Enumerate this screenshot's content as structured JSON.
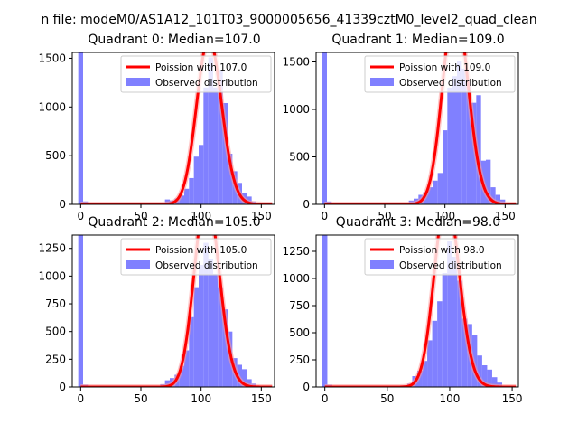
{
  "suptitle": "n file: modeM0/AS1A12_101T03_9000005656_41339cztM0_level2_quad_clean",
  "colors": {
    "observed_bar": "#8080ff",
    "poisson_line": "#ff0000",
    "glow": "#ff9999",
    "axes": "#000000",
    "legend_border": "#cccccc"
  },
  "chart_data": [
    {
      "type": "bar",
      "title": "Quadrant 0: Median=107.0",
      "median": 107.0,
      "xlim": [
        -7,
        161
      ],
      "ylim": [
        0,
        1560
      ],
      "xticks": [
        0,
        50,
        100,
        150
      ],
      "yticks": [
        0,
        500,
        1000,
        1500
      ],
      "bin_width": 4,
      "legend_position": "top-right",
      "series": [
        {
          "name": "Poission with 107.0",
          "kind": "line"
        },
        {
          "name": "Observed distribution",
          "kind": "hist",
          "bins": [
            -2,
            2,
            62,
            66,
            70,
            74,
            78,
            82,
            86,
            90,
            94,
            98,
            102,
            106,
            110,
            114,
            118,
            122,
            126,
            130,
            134,
            138,
            142,
            146,
            150,
            154
          ],
          "values": [
            1560,
            30,
            5,
            8,
            50,
            40,
            60,
            90,
            160,
            270,
            490,
            610,
            1200,
            1510,
            1200,
            1380,
            1040,
            520,
            340,
            220,
            120,
            80,
            30,
            12,
            6,
            3
          ]
        }
      ]
    },
    {
      "type": "bar",
      "title": "Quadrant 1: Median=109.0",
      "median": 109.0,
      "xlim": [
        -7,
        161
      ],
      "ylim": [
        0,
        1600
      ],
      "xticks": [
        0,
        50,
        100,
        150
      ],
      "yticks": [
        0,
        500,
        1000,
        1500
      ],
      "bin_width": 4,
      "legend_position": "top-right",
      "series": [
        {
          "name": "Poission with 109.0",
          "kind": "line"
        },
        {
          "name": "Observed distribution",
          "kind": "hist",
          "bins": [
            -2,
            2,
            62,
            66,
            70,
            74,
            78,
            82,
            86,
            90,
            94,
            98,
            102,
            106,
            110,
            114,
            118,
            122,
            126,
            130,
            134,
            138,
            142,
            146,
            150,
            154
          ],
          "values": [
            1600,
            30,
            8,
            5,
            40,
            60,
            100,
            130,
            180,
            250,
            330,
            780,
            1230,
            1350,
            1510,
            1430,
            1300,
            1070,
            1150,
            460,
            470,
            180,
            100,
            50,
            15,
            4
          ]
        }
      ]
    },
    {
      "type": "bar",
      "title": "Quadrant 2: Median=105.0",
      "median": 105.0,
      "xlim": [
        -7,
        161
      ],
      "ylim": [
        0,
        1370
      ],
      "xticks": [
        0,
        50,
        100,
        150
      ],
      "yticks": [
        0,
        250,
        500,
        750,
        1000,
        1250
      ],
      "bin_width": 4,
      "legend_position": "top-right",
      "series": [
        {
          "name": "Poission with 105.0",
          "kind": "line"
        },
        {
          "name": "Observed distribution",
          "kind": "hist",
          "bins": [
            -2,
            2,
            58,
            62,
            66,
            70,
            74,
            78,
            82,
            86,
            90,
            94,
            98,
            102,
            106,
            110,
            114,
            118,
            122,
            126,
            130,
            134,
            138,
            142,
            146,
            150
          ],
          "values": [
            1370,
            20,
            5,
            10,
            25,
            60,
            80,
            110,
            190,
            330,
            630,
            900,
            1100,
            1300,
            1150,
            1020,
            900,
            700,
            500,
            260,
            200,
            160,
            70,
            30,
            10,
            3
          ]
        }
      ]
    },
    {
      "type": "bar",
      "title": "Quadrant 3: Median=98.0",
      "median": 98.0,
      "xlim": [
        -7,
        155
      ],
      "ylim": [
        0,
        1400
      ],
      "xticks": [
        0,
        50,
        100,
        150
      ],
      "yticks": [
        0,
        250,
        500,
        750,
        1000,
        1250
      ],
      "bin_width": 4,
      "legend_position": "top-right",
      "series": [
        {
          "name": "Poission with 98.0",
          "kind": "line"
        },
        {
          "name": "Observed distribution",
          "kind": "hist",
          "bins": [
            -2,
            2,
            54,
            58,
            62,
            66,
            70,
            74,
            78,
            82,
            86,
            90,
            94,
            98,
            102,
            106,
            110,
            114,
            118,
            122,
            126,
            130,
            134,
            138,
            142,
            146
          ],
          "values": [
            1400,
            20,
            10,
            5,
            15,
            30,
            100,
            150,
            240,
            430,
            610,
            790,
            1050,
            1350,
            1200,
            980,
            630,
            580,
            480,
            290,
            200,
            160,
            90,
            40,
            10,
            3
          ]
        }
      ]
    }
  ]
}
